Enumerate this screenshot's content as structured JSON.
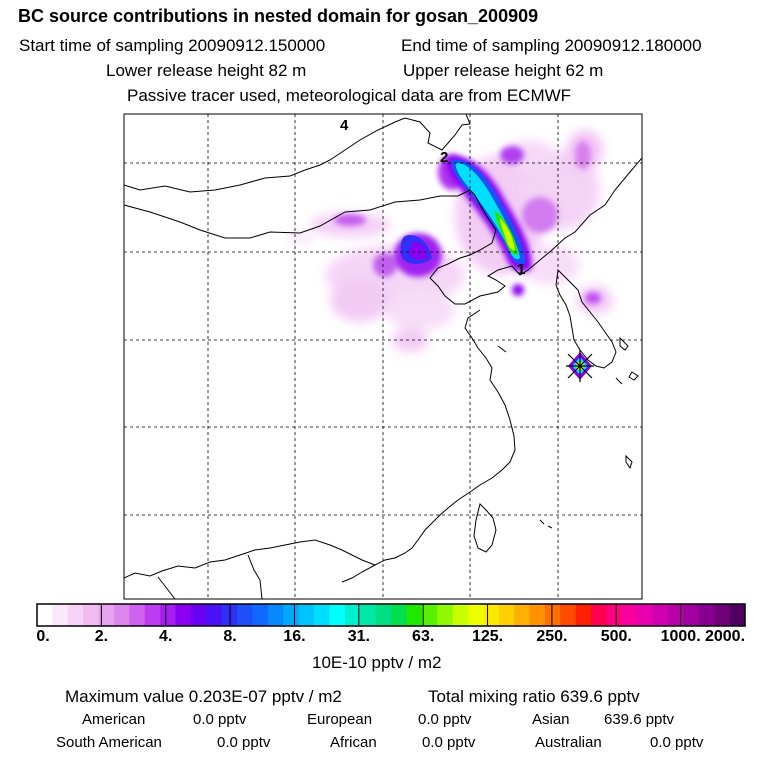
{
  "header": {
    "title": "BC  source contributions in nested domain for gosan_200909",
    "start_time": "Start time of sampling 20090912.150000",
    "end_time": "End time of sampling 20090912.180000",
    "lower_release": "Lower release height   82 m",
    "upper_release": "Upper release height   62 m",
    "tracer_note": "Passive tracer used, meteorological data are from ECMWF"
  },
  "map": {
    "point_labels": [
      "4",
      "2",
      "1"
    ],
    "receptor": "gosan"
  },
  "colorbar": {
    "tick_labels": [
      "0.",
      "2.",
      "4.",
      "8.",
      "16.",
      "31.",
      "63.",
      "125.",
      "250.",
      "500.",
      "1000.",
      "2000."
    ],
    "colors": [
      "#ffffff",
      "#fbe8fb",
      "#f6d3f7",
      "#f0bcf2",
      "#e8a3ee",
      "#dc86ec",
      "#cf63ee",
      "#bc3df0",
      "#a61ef1",
      "#8a00f2",
      "#6a00f4",
      "#4a10f6",
      "#3030f8",
      "#1e50fa",
      "#1068fc",
      "#0888fd",
      "#00a8ff",
      "#00c4ff",
      "#00dfff",
      "#00ffff",
      "#00f0d0",
      "#00e8a8",
      "#00e080",
      "#00e050",
      "#20e800",
      "#58f000",
      "#90f800",
      "#c8ff00",
      "#f0ff00",
      "#ffe800",
      "#ffd000",
      "#ffb000",
      "#ff9000",
      "#ff7000",
      "#ff4a00",
      "#ff2000",
      "#ff0050",
      "#ff0080",
      "#f800a0",
      "#e800b0",
      "#d000b0",
      "#b800a8",
      "#a000a0",
      "#880090",
      "#700078",
      "#500060"
    ],
    "units": "10E-10 pptv / m2"
  },
  "summary": {
    "max_value": "Maximum value  0.203E-07 pptv / m2",
    "total_mixing": "Total mixing ratio      639.6 pptv",
    "american_label": "American",
    "american_value": "0.0 pptv",
    "european_label": "European",
    "european_value": "0.0 pptv",
    "asian_label": "Asian",
    "asian_value": "639.6 pptv",
    "south_american_label": "South American",
    "south_american_value": "0.0 pptv",
    "african_label": "African",
    "african_value": "0.0 pptv",
    "australian_label": "Australian",
    "australian_value": "0.0 pptv"
  }
}
